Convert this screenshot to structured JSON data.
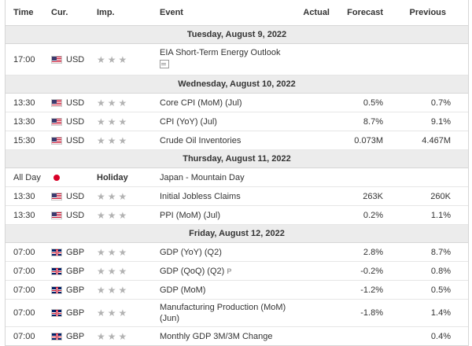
{
  "header": {
    "time": "Time",
    "cur": "Cur.",
    "imp": "Imp.",
    "event": "Event",
    "actual": "Actual",
    "forecast": "Forecast",
    "previous": "Previous"
  },
  "days": [
    "Tuesday, August 9, 2022",
    "Wednesday, August 10, 2022",
    "Thursday, August 11, 2022",
    "Friday, August 12, 2022"
  ],
  "rows": [
    {
      "time": "17:00",
      "cur": "USD",
      "event": "EIA Short-Term Energy Outlook",
      "actual": "",
      "forecast": "",
      "previous": ""
    },
    {
      "time": "13:30",
      "cur": "USD",
      "event": "Core CPI (MoM) (Jul)",
      "actual": "",
      "forecast": "0.5%",
      "previous": "0.7%"
    },
    {
      "time": "13:30",
      "cur": "USD",
      "event": "CPI (YoY) (Jul)",
      "actual": "",
      "forecast": "8.7%",
      "previous": "9.1%"
    },
    {
      "time": "15:30",
      "cur": "USD",
      "event": "Crude Oil Inventories",
      "actual": "",
      "forecast": "0.073M",
      "previous": "4.467M"
    },
    {
      "time": "All Day",
      "cur": "",
      "imp": "Holiday",
      "event": "Japan - Mountain Day",
      "actual": "",
      "forecast": "",
      "previous": ""
    },
    {
      "time": "13:30",
      "cur": "USD",
      "event": "Initial Jobless Claims",
      "actual": "",
      "forecast": "263K",
      "previous": "260K"
    },
    {
      "time": "13:30",
      "cur": "USD",
      "event": "PPI (MoM) (Jul)",
      "actual": "",
      "forecast": "0.2%",
      "previous": "1.1%"
    },
    {
      "time": "07:00",
      "cur": "GBP",
      "event": "GDP (YoY) (Q2)",
      "actual": "",
      "forecast": "2.8%",
      "previous": "8.7%"
    },
    {
      "time": "07:00",
      "cur": "GBP",
      "event": "GDP (QoQ) (Q2)",
      "prelim": "P",
      "actual": "",
      "forecast": "-0.2%",
      "previous": "0.8%"
    },
    {
      "time": "07:00",
      "cur": "GBP",
      "event": "GDP (MoM)",
      "actual": "",
      "forecast": "-1.2%",
      "previous": "0.5%"
    },
    {
      "time": "07:00",
      "cur": "GBP",
      "event": "Manufacturing Production (MoM) (Jun)",
      "actual": "",
      "forecast": "-1.8%",
      "previous": "1.4%"
    },
    {
      "time": "07:00",
      "cur": "GBP",
      "event": "Monthly GDP 3M/3M Change",
      "actual": "",
      "forecast": "",
      "previous": "0.4%"
    }
  ],
  "importance_stars": "★★★",
  "colors": {
    "day_separator_bg": "#ececec",
    "star": "#b3b3b3",
    "border": "#d6d6d6"
  }
}
